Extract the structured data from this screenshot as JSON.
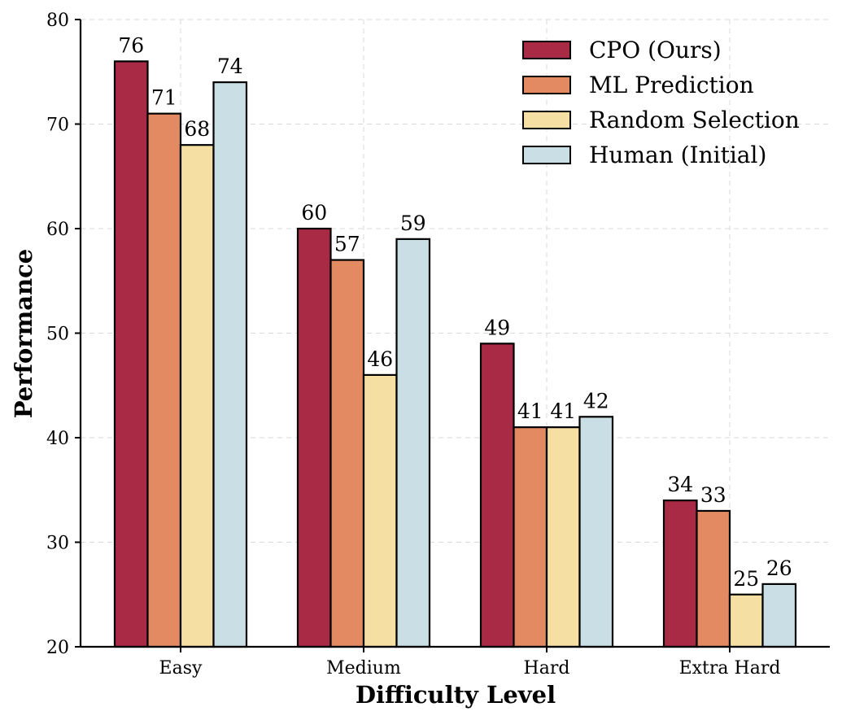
{
  "chart_data": {
    "type": "bar",
    "title": "",
    "xlabel": "Difficulty Level",
    "ylabel": "Performance",
    "ylim": [
      20,
      80
    ],
    "yticks": [
      20,
      30,
      40,
      50,
      60,
      70,
      80
    ],
    "grid": true,
    "legend_position": "top-right",
    "categories": [
      "Easy",
      "Medium",
      "Hard",
      "Extra Hard"
    ],
    "series": [
      {
        "name": "CPO (Ours)",
        "color": "#a82a45",
        "values": [
          76,
          60,
          49,
          34
        ]
      },
      {
        "name": "ML Prediction",
        "color": "#e48a62",
        "values": [
          71,
          57,
          41,
          33
        ]
      },
      {
        "name": "Random Selection",
        "color": "#f6dfa3",
        "values": [
          68,
          46,
          41,
          25
        ]
      },
      {
        "name": "Human (Initial)",
        "color": "#c9dfe5",
        "values": [
          74,
          59,
          42,
          26
        ]
      }
    ]
  }
}
